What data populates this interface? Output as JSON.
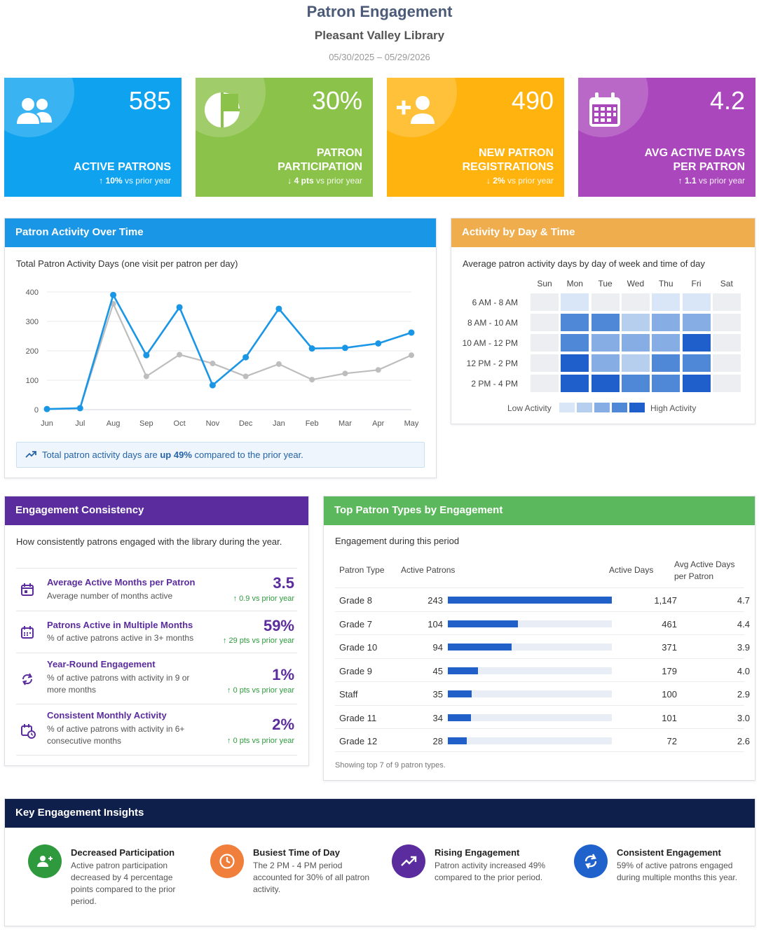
{
  "header": {
    "title": "Patron Engagement",
    "subtitle": "Pleasant Valley Library",
    "date_range": "05/30/2025 – 05/29/2026"
  },
  "kpis": [
    {
      "value": "585",
      "label": "ACTIVE PATRONS",
      "delta_arrow": "↑",
      "delta_value": "10%",
      "delta_text": " vs prior year",
      "color": "#0fa3ef",
      "icon": "people-icon"
    },
    {
      "value": "30%",
      "label": "PATRON PARTICIPATION",
      "delta_arrow": "↓",
      "delta_value": "4 pts",
      "delta_text": " vs prior year",
      "color": "#8bc34a",
      "icon": "pie-chart-icon"
    },
    {
      "value": "490",
      "label": "NEW PATRON REGISTRATIONS",
      "delta_arrow": "↓",
      "delta_value": "2%",
      "delta_text": " vs prior year",
      "color": "#ffb30f",
      "icon": "add-user-icon"
    },
    {
      "value": "4.2",
      "label": "AVG ACTIVE DAYS PER PATRON",
      "delta_arrow": "↑",
      "delta_value": "1.1",
      "delta_text": " vs prior year",
      "color": "#ab47bc",
      "icon": "calendar-icon"
    }
  ],
  "activity_card": {
    "title": "Patron Activity Over Time",
    "subtitle": "Total Patron Activity Days (one visit per patron per day)",
    "note_prefix": "Total patron activity days are ",
    "note_bold": "up 49%",
    "note_suffix": " compared to the prior year.",
    "header_color": "#1a96e6"
  },
  "chart_data": {
    "type": "line",
    "x": [
      "Jun",
      "Jul",
      "Aug",
      "Sep",
      "Oct",
      "Nov",
      "Dec",
      "Jan",
      "Feb",
      "Mar",
      "Apr",
      "May"
    ],
    "yticks": [
      0,
      100,
      200,
      300,
      400
    ],
    "ylim": [
      0,
      400
    ],
    "grid": true,
    "series": [
      {
        "values": [
          2,
          5,
          390,
          185,
          348,
          83,
          178,
          343,
          208,
          210,
          225,
          262
        ],
        "color": "#1a96e6"
      },
      {
        "values": [
          2,
          5,
          360,
          113,
          187,
          157,
          113,
          155,
          102,
          123,
          135,
          185
        ],
        "color": "#bdbdbd"
      }
    ]
  },
  "heatmap_card": {
    "title": "Activity by Day & Time",
    "subtitle": "Average patron activity days by day of week and time of day",
    "header_color": "#f0ad4e",
    "days": [
      "Sun",
      "Mon",
      "Tue",
      "Wed",
      "Thu",
      "Fri",
      "Sat"
    ],
    "times": [
      "6 AM - 8 AM",
      "8 AM - 10 AM",
      "10 AM - 12 PM",
      "12 PM - 2 PM",
      "2 PM - 4 PM"
    ],
    "levels": [
      [
        0,
        1,
        0,
        0,
        1,
        1,
        0
      ],
      [
        0,
        4,
        4,
        2,
        3,
        3,
        0
      ],
      [
        0,
        4,
        3,
        3,
        3,
        5,
        0
      ],
      [
        0,
        5,
        3,
        2,
        4,
        4,
        0
      ],
      [
        0,
        5,
        5,
        4,
        4,
        5,
        0
      ]
    ],
    "level_colors": [
      "#eceef1",
      "#d9e6f7",
      "#b7cfef",
      "#86aee4",
      "#4f88d6",
      "#1f5fcc"
    ],
    "legend_low": "Low Activity",
    "legend_high": "High Activity"
  },
  "consistency_card": {
    "title": "Engagement Consistency",
    "subtitle": "How consistently patrons engaged with the library during the year.",
    "header_color": "#5b2c9d",
    "rows": [
      {
        "title": "Average Active Months per Patron",
        "desc": "Average number of months active",
        "value": "3.5",
        "delta": "↑ 0.9 vs prior year",
        "icon": "calendar-icon"
      },
      {
        "title": "Patrons Active in Multiple Months",
        "desc": "% of active patrons active in 3+ months",
        "value": "59%",
        "delta": "↑ 29 pts vs prior year",
        "icon": "calendar-month-icon"
      },
      {
        "title": "Year-Round Engagement",
        "desc": "% of active patrons with activity in 9 or more months",
        "value": "1%",
        "delta": "↑ 0 pts vs prior year",
        "icon": "refresh-icon"
      },
      {
        "title": "Consistent Monthly Activity",
        "desc": "% of active patrons with activity in 6+ consecutive months",
        "value": "2%",
        "delta": "↑ 0 pts vs prior year",
        "icon": "calendar-refresh-icon"
      }
    ]
  },
  "patron_types_card": {
    "title": "Top Patron Types by Engagement",
    "subtitle": "Engagement during this period",
    "header_color": "#5cb85c",
    "columns": [
      "Patron Type",
      "Active Patrons",
      "Active Days",
      "Avg Active Days per Patron"
    ],
    "rows": [
      {
        "type": "Grade 8",
        "active": 243,
        "days": "1,147",
        "avg": "4.7"
      },
      {
        "type": "Grade 7",
        "active": 104,
        "days": "461",
        "avg": "4.4"
      },
      {
        "type": "Grade 10",
        "active": 94,
        "days": "371",
        "avg": "3.9"
      },
      {
        "type": "Grade 9",
        "active": 45,
        "days": "179",
        "avg": "4.0"
      },
      {
        "type": "Staff",
        "active": 35,
        "days": "100",
        "avg": "2.9"
      },
      {
        "type": "Grade 11",
        "active": 34,
        "days": "101",
        "avg": "3.0"
      },
      {
        "type": "Grade 12",
        "active": 28,
        "days": "72",
        "avg": "2.6"
      }
    ],
    "footer": "Showing top 7 of 9 patron types."
  },
  "insights_card": {
    "title": "Key Engagement Insights",
    "header_color": "#0f1f4b",
    "items": [
      {
        "title": "Decreased Participation",
        "desc": "Active patron participation decreased by 4 percentage points compared to the prior period.",
        "color": "#2e9a3d",
        "icon": "add-user-icon"
      },
      {
        "title": "Busiest Time of Day",
        "desc": "The 2 PM - 4 PM period accounted for 30% of all patron activity.",
        "color": "#f07f3c",
        "icon": "clock-icon"
      },
      {
        "title": "Rising Engagement",
        "desc": "Patron activity increased 49% compared to the prior period.",
        "color": "#5b2c9d",
        "icon": "trending-up-icon"
      },
      {
        "title": "Consistent Engagement",
        "desc": "59% of active patrons engaged during multiple months this year.",
        "color": "#2062cc",
        "icon": "refresh-icon"
      }
    ]
  }
}
